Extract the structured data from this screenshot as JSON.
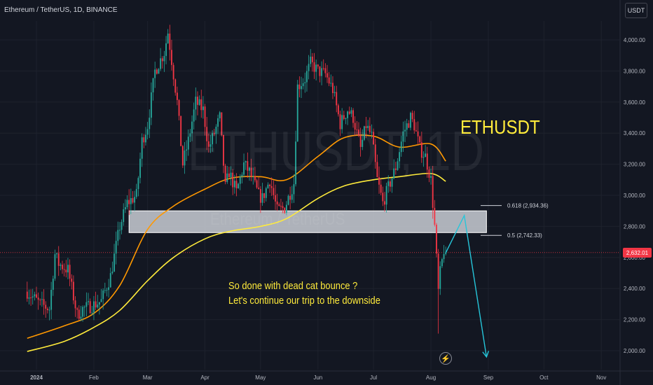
{
  "header": {
    "symbol_title": "Ethereum / TetherUS, 1D, BINANCE",
    "currency_button": "USDT"
  },
  "watermark": {
    "symbol": "ETHUSDT, 1D",
    "name": "Ethereum / TetherUS"
  },
  "overlay": {
    "big_label": "ETHUSDT",
    "annotation_line1": "So done with dead cat bounce ?",
    "annotation_line2": "Let's continue our trip to the downside",
    "bolt_icon": "lightning-icon"
  },
  "last_price": "2,632.01",
  "colors": {
    "background": "#131722",
    "bull": "#26a69a",
    "bear": "#f23645",
    "ma_fast": "#ff9800",
    "ma_slow": "#ffeb3b",
    "zone": "#d1d4dc",
    "arrow": "#26c6da",
    "grid": "#1e222d"
  },
  "chart_data": {
    "type": "candlestick",
    "y_axis": {
      "ticks": [
        2000,
        2200,
        2400,
        2600,
        2800,
        3000,
        3200,
        3400,
        3600,
        3800,
        4000
      ],
      "tick_labels": [
        "2,000.00",
        "2,200.00",
        "2,400.00",
        "2,600.00",
        "2,800.00",
        "3,000.00",
        "3,200.00",
        "3,400.00",
        "3,600.00",
        "3,800.00",
        "4,000.00"
      ]
    },
    "x_axis": {
      "ticks": [
        "2024-01-01",
        "2024-02-01",
        "2024-03-01",
        "2024-04-01",
        "2024-05-01",
        "2024-06-01",
        "2024-07-01",
        "2024-08-01",
        "2024-09-01",
        "2024-10-01",
        "2024-11-01"
      ],
      "tick_labels": [
        "2024",
        "Feb",
        "Mar",
        "Apr",
        "May",
        "Jun",
        "Jul",
        "Aug",
        "Sep",
        "Oct",
        "Nov"
      ]
    },
    "price_path": [
      [
        "2023-12-27",
        2380
      ],
      [
        "2024-01-03",
        2300
      ],
      [
        "2024-01-08",
        2270
      ],
      [
        "2024-01-11",
        2620
      ],
      [
        "2024-01-13",
        2560
      ],
      [
        "2024-01-18",
        2520
      ],
      [
        "2024-01-23",
        2230
      ],
      [
        "2024-01-26",
        2270
      ],
      [
        "2024-01-31",
        2290
      ],
      [
        "2024-02-05",
        2320
      ],
      [
        "2024-02-10",
        2480
      ],
      [
        "2024-02-15",
        2800
      ],
      [
        "2024-02-19",
        2950
      ],
      [
        "2024-02-24",
        3000
      ],
      [
        "2024-02-27",
        3350
      ],
      [
        "2024-03-01",
        3450
      ],
      [
        "2024-03-05",
        3800
      ],
      [
        "2024-03-10",
        3920
      ],
      [
        "2024-03-12",
        4050
      ],
      [
        "2024-03-14",
        3870
      ],
      [
        "2024-03-17",
        3600
      ],
      [
        "2024-03-20",
        3200
      ],
      [
        "2024-03-23",
        3350
      ],
      [
        "2024-03-27",
        3600
      ],
      [
        "2024-03-31",
        3550
      ],
      [
        "2024-04-03",
        3300
      ],
      [
        "2024-04-06",
        3400
      ],
      [
        "2024-04-09",
        3500
      ],
      [
        "2024-04-12",
        3050
      ],
      [
        "2024-04-14",
        3150
      ],
      [
        "2024-04-18",
        3020
      ],
      [
        "2024-04-22",
        3200
      ],
      [
        "2024-04-25",
        3150
      ],
      [
        "2024-04-30",
        3000
      ],
      [
        "2024-05-02",
        2980
      ],
      [
        "2024-05-06",
        3100
      ],
      [
        "2024-05-10",
        2900
      ],
      [
        "2024-05-14",
        2920
      ],
      [
        "2024-05-19",
        3080
      ],
      [
        "2024-05-21",
        3700
      ],
      [
        "2024-05-25",
        3750
      ],
      [
        "2024-05-28",
        3850
      ],
      [
        "2024-06-01",
        3800
      ],
      [
        "2024-06-05",
        3780
      ],
      [
        "2024-06-09",
        3680
      ],
      [
        "2024-06-13",
        3460
      ],
      [
        "2024-06-17",
        3550
      ],
      [
        "2024-06-20",
        3500
      ],
      [
        "2024-06-24",
        3300
      ],
      [
        "2024-06-27",
        3450
      ],
      [
        "2024-06-30",
        3380
      ],
      [
        "2024-07-03",
        3100
      ],
      [
        "2024-07-06",
        2950
      ],
      [
        "2024-07-09",
        3050
      ],
      [
        "2024-07-13",
        3180
      ],
      [
        "2024-07-17",
        3400
      ],
      [
        "2024-07-21",
        3500
      ],
      [
        "2024-07-23",
        3450
      ],
      [
        "2024-07-26",
        3300
      ],
      [
        "2024-07-29",
        3250
      ],
      [
        "2024-08-01",
        3100
      ],
      [
        "2024-08-03",
        2800
      ],
      [
        "2024-08-05",
        2380
      ],
      [
        "2024-08-06",
        2500
      ],
      [
        "2024-08-08",
        2650
      ],
      [
        "2024-08-09",
        2632
      ]
    ],
    "moving_averages": [
      {
        "color": "#ff9800",
        "points": [
          [
            "2023-12-27",
            2080
          ],
          [
            "2024-01-16",
            2160
          ],
          [
            "2024-02-01",
            2240
          ],
          [
            "2024-02-15",
            2420
          ],
          [
            "2024-03-01",
            2780
          ],
          [
            "2024-03-15",
            2930
          ],
          [
            "2024-04-01",
            3040
          ],
          [
            "2024-04-15",
            3110
          ],
          [
            "2024-05-01",
            3120
          ],
          [
            "2024-05-15",
            3100
          ],
          [
            "2024-06-01",
            3250
          ],
          [
            "2024-06-15",
            3370
          ],
          [
            "2024-07-01",
            3380
          ],
          [
            "2024-07-15",
            3310
          ],
          [
            "2024-08-01",
            3330
          ],
          [
            "2024-08-09",
            3220
          ]
        ]
      },
      {
        "color": "#ffeb3b",
        "points": [
          [
            "2023-12-27",
            1995
          ],
          [
            "2024-01-16",
            2060
          ],
          [
            "2024-02-01",
            2150
          ],
          [
            "2024-02-15",
            2260
          ],
          [
            "2024-03-01",
            2450
          ],
          [
            "2024-03-15",
            2600
          ],
          [
            "2024-04-01",
            2720
          ],
          [
            "2024-04-15",
            2770
          ],
          [
            "2024-05-01",
            2800
          ],
          [
            "2024-05-15",
            2850
          ],
          [
            "2024-06-01",
            2980
          ],
          [
            "2024-06-15",
            3060
          ],
          [
            "2024-07-01",
            3100
          ],
          [
            "2024-07-15",
            3120
          ],
          [
            "2024-08-01",
            3140
          ],
          [
            "2024-08-09",
            3090
          ]
        ]
      }
    ],
    "resistance_zone": {
      "from": "2024-02-20",
      "to": "2024-08-31",
      "low": 2760,
      "high": 2900
    },
    "fib_levels": [
      {
        "label": "0.618 (2,934.36)",
        "price": 2934.36
      },
      {
        "label": "0.5 (2,742.33)",
        "price": 2742.33
      }
    ],
    "projection": [
      [
        "2024-08-09",
        2630
      ],
      [
        "2024-08-19",
        2870
      ],
      [
        "2024-08-31",
        1960
      ]
    ],
    "last_price": 2632.01
  }
}
